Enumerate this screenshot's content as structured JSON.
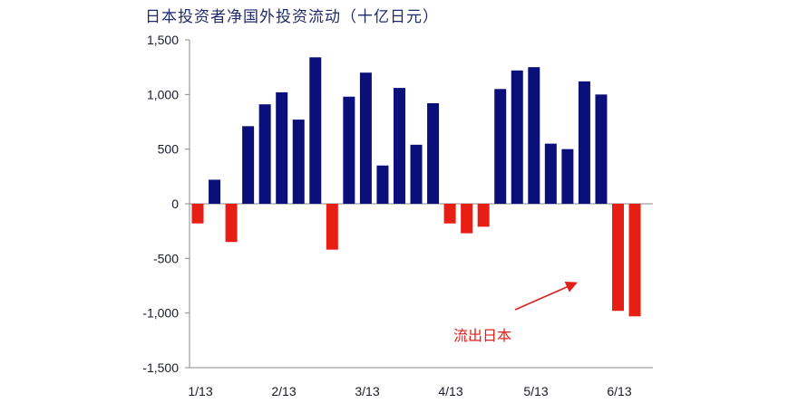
{
  "chart_data": {
    "type": "bar",
    "title": "日本投资者净国外投资流动（十亿日元）",
    "xlabel": "",
    "ylabel": "",
    "ylim": [
      -1500,
      1500
    ],
    "yticks": [
      1500,
      1000,
      500,
      0,
      -500,
      -1000,
      -1500
    ],
    "ytick_labels": [
      "1,500",
      "1,000",
      "500",
      "0",
      "-500",
      "-1,000",
      "-1,500"
    ],
    "xtick_labels": [
      "1/13",
      "2/13",
      "3/13",
      "4/13",
      "5/13",
      "6/13"
    ],
    "values": [
      -180,
      220,
      -350,
      710,
      910,
      1020,
      770,
      1340,
      -420,
      980,
      1200,
      350,
      1060,
      540,
      920,
      -180,
      -270,
      -210,
      1050,
      1220,
      1250,
      550,
      500,
      1120,
      1000,
      -980,
      -1030
    ],
    "colors": {
      "positive": "#0a0f7a",
      "negative": "#e61e14"
    },
    "annotations": [
      {
        "text": "流出日本"
      }
    ],
    "grid": false,
    "legend": "none"
  }
}
